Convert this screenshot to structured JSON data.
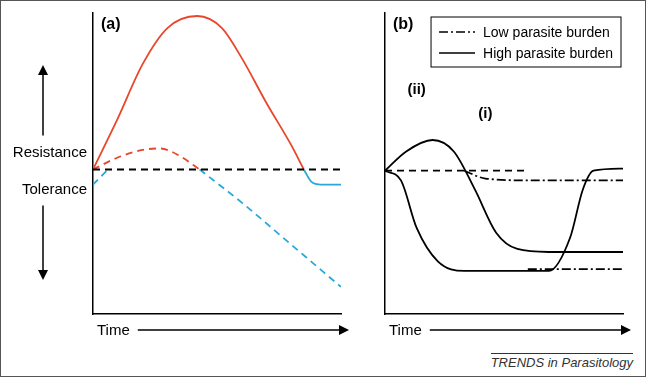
{
  "footer": "TRENDS in Parasitology",
  "chart_data": [
    {
      "type": "line",
      "title": "(a)",
      "xlabel": "Time",
      "ylabel_high": "Resistance",
      "ylabel_low": "Tolerance",
      "xlim": [
        0,
        10
      ],
      "ylim": [
        0,
        10
      ],
      "tick_labels": false,
      "grid": false,
      "series": [
        {
          "color": "#000000",
          "line_style": "dashed",
          "x": [
            0,
            10
          ],
          "values": [
            4.8,
            4.8
          ]
        },
        {
          "color": "#e8472b",
          "line_style": "solid",
          "x": [
            0,
            1,
            2,
            3,
            4.2,
            5.2,
            6,
            7,
            8,
            8.5
          ],
          "values": [
            4.8,
            6.5,
            8.3,
            9.5,
            9.9,
            9.5,
            8.5,
            7,
            5.6,
            4.8
          ]
        },
        {
          "color": "#2aa8d8",
          "line_style": "solid",
          "x": [
            8.5,
            8.8,
            9.2,
            10
          ],
          "values": [
            4.8,
            4.4,
            4.3,
            4.3
          ]
        },
        {
          "color": "#e8472b",
          "line_style": "dashed",
          "x": [
            0,
            1,
            2,
            2.7,
            3.5,
            4.3
          ],
          "values": [
            4.8,
            5.2,
            5.45,
            5.5,
            5.25,
            4.8
          ]
        },
        {
          "color": "#2aa8d8",
          "line_style": "dashed",
          "x": [
            0,
            0.6,
            2,
            4.3,
            6,
            8,
            10
          ],
          "values": [
            4.3,
            4.8,
            null,
            4.8,
            3.7,
            2.3,
            0.9
          ]
        }
      ]
    },
    {
      "type": "line",
      "title": "(b)",
      "xlabel": "Time",
      "xlim": [
        0,
        10
      ],
      "ylim": [
        0,
        10
      ],
      "tick_labels": false,
      "grid": false,
      "legend": "top-right",
      "annotations": [
        {
          "text": "(i)",
          "x": 4.22,
          "y": 6.51
        },
        {
          "text": "(ii)",
          "x": 1.33,
          "y": 7.3
        }
      ],
      "series": [
        {
          "color": "#000000",
          "line_style": "dashed",
          "x": [
            0,
            6
          ],
          "values": [
            4.76,
            4.76
          ]
        },
        {
          "name": "Low parasite burden",
          "color": "#000000",
          "line_style": "dashdot",
          "x": [
            3.33,
            4.22,
            6,
            10
          ],
          "values": [
            4.76,
            4.5,
            4.44,
            4.44
          ]
        },
        {
          "name": "High parasite burden",
          "color": "#000000",
          "line_style": "solid",
          "x": [
            0,
            0.89,
            2,
            2.89,
            3.78,
            4.67,
            5.56,
            6.89,
            10
          ],
          "values": [
            4.76,
            5.4,
            5.78,
            5.4,
            4.13,
            2.7,
            2.16,
            2.06,
            2.06
          ]
        },
        {
          "name": "High parasite burden",
          "color": "#000000",
          "line_style": "solid",
          "x": [
            0,
            0.67,
            1.33,
            2.22,
            3.33,
            6.89,
            7.78,
            8.31,
            8.76,
            10
          ],
          "values": [
            4.76,
            4.44,
            2.86,
            1.75,
            1.43,
            1.43,
            2.54,
            4.13,
            4.76,
            4.83
          ]
        },
        {
          "name": "Low parasite burden",
          "color": "#000000",
          "line_style": "dashdot",
          "x": [
            6,
            10
          ],
          "values": [
            1.49,
            1.49
          ]
        }
      ]
    }
  ]
}
